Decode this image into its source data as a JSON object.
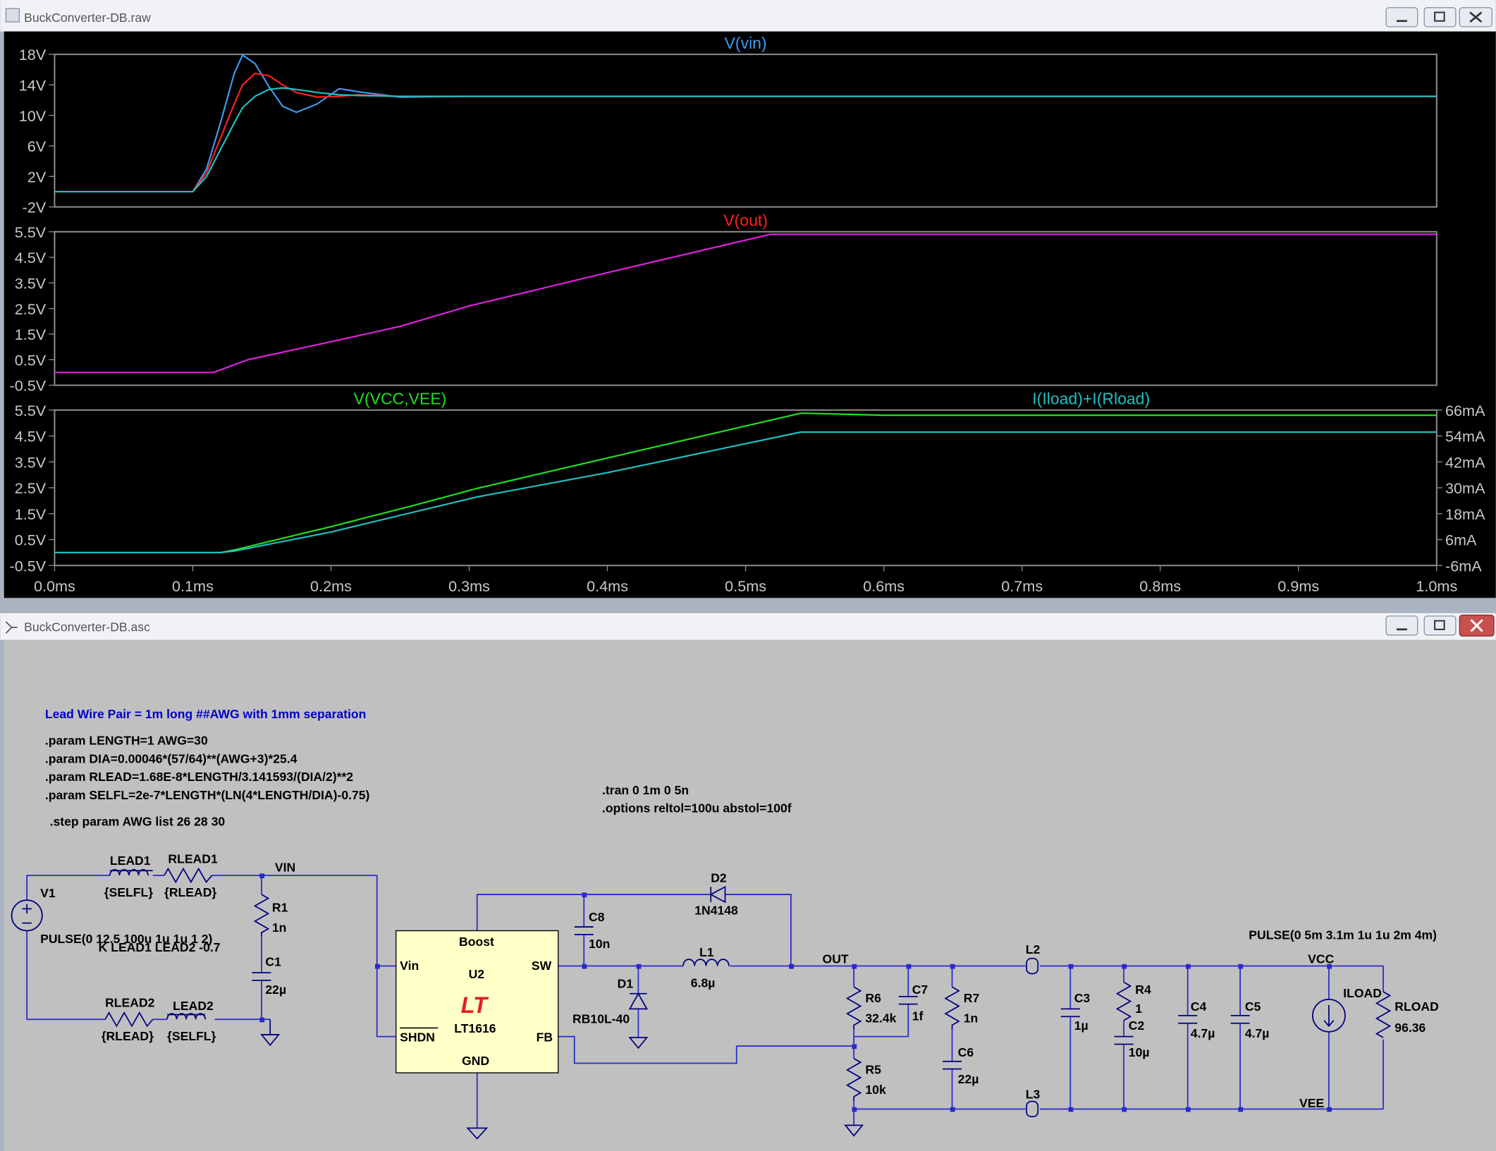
{
  "waveform_window": {
    "title": "BuckConverter-DB.raw"
  },
  "chart_data": [
    {
      "type": "line",
      "title": "V(vin)",
      "title_color": "#3c9cf0",
      "xlim": [
        0,
        1.0
      ],
      "ylim": [
        -2,
        18
      ],
      "yticks": [
        {
          "value": -2,
          "label": "-2V"
        },
        {
          "value": 2,
          "label": "2V"
        },
        {
          "value": 6,
          "label": "6V"
        },
        {
          "value": 10,
          "label": "10V"
        },
        {
          "value": 14,
          "label": "14V"
        },
        {
          "value": 18,
          "label": "18V"
        }
      ],
      "x": [
        0,
        0.1,
        0.11,
        0.12,
        0.13,
        0.136,
        0.145,
        0.155,
        0.165,
        0.175,
        0.19,
        0.206,
        0.22,
        0.25,
        0.3,
        1.0
      ],
      "series": [
        {
          "color": "#3c9cf0",
          "values": [
            0,
            0,
            3,
            9,
            15.5,
            17.9,
            16.8,
            13.8,
            11.2,
            10.4,
            11.5,
            13.5,
            13.1,
            12.4,
            12.5,
            12.5
          ]
        },
        {
          "color": "#ff2020",
          "values": [
            0,
            0,
            2.5,
            7,
            11.5,
            14,
            15.5,
            15.2,
            14,
            13,
            12.4,
            12.5,
            12.7,
            12.5,
            12.5,
            12.5
          ]
        },
        {
          "color": "#20c0c0",
          "values": [
            0,
            0,
            2,
            5.5,
            9,
            11,
            12.5,
            13.4,
            13.6,
            13.4,
            13,
            12.7,
            12.6,
            12.5,
            12.5,
            12.5
          ]
        }
      ]
    },
    {
      "type": "line",
      "title": "V(out)",
      "title_color": "#ff2020",
      "xlim": [
        0,
        1.0
      ],
      "ylim": [
        -0.5,
        5.5
      ],
      "yticks": [
        {
          "value": -0.5,
          "label": "-0.5V"
        },
        {
          "value": 0.5,
          "label": "0.5V"
        },
        {
          "value": 1.5,
          "label": "1.5V"
        },
        {
          "value": 2.5,
          "label": "2.5V"
        },
        {
          "value": 3.5,
          "label": "3.5V"
        },
        {
          "value": 4.5,
          "label": "4.5V"
        },
        {
          "value": 5.5,
          "label": "5.5V"
        }
      ],
      "x": [
        0,
        0.115,
        0.13,
        0.14,
        0.2,
        0.25,
        0.3,
        0.4,
        0.518,
        1.0
      ],
      "series": [
        {
          "color": "#e020e0",
          "values": [
            0,
            0,
            0.3,
            0.5,
            1.2,
            1.8,
            2.6,
            3.9,
            5.4,
            5.4
          ]
        }
      ]
    },
    {
      "type": "line",
      "xlim": [
        0,
        1.0
      ],
      "ylim": [
        -0.5,
        5.5
      ],
      "y2lim": [
        -6,
        66
      ],
      "yticks": [
        {
          "value": -0.5,
          "label": "-0.5V"
        },
        {
          "value": 0.5,
          "label": "0.5V"
        },
        {
          "value": 1.5,
          "label": "1.5V"
        },
        {
          "value": 2.5,
          "label": "2.5V"
        },
        {
          "value": 3.5,
          "label": "3.5V"
        },
        {
          "value": 4.5,
          "label": "4.5V"
        },
        {
          "value": 5.5,
          "label": "5.5V"
        }
      ],
      "y2ticks": [
        {
          "value": -6,
          "label": "-6mA"
        },
        {
          "value": 6,
          "label": "6mA"
        },
        {
          "value": 18,
          "label": "18mA"
        },
        {
          "value": 30,
          "label": "30mA"
        },
        {
          "value": 42,
          "label": "42mA"
        },
        {
          "value": 54,
          "label": "54mA"
        },
        {
          "value": 66,
          "label": "66mA"
        }
      ],
      "xticks": [
        {
          "value": 0,
          "label": "0.0ms"
        },
        {
          "value": 0.1,
          "label": "0.1ms"
        },
        {
          "value": 0.2,
          "label": "0.2ms"
        },
        {
          "value": 0.3,
          "label": "0.3ms"
        },
        {
          "value": 0.4,
          "label": "0.4ms"
        },
        {
          "value": 0.5,
          "label": "0.5ms"
        },
        {
          "value": 0.6,
          "label": "0.6ms"
        },
        {
          "value": 0.7,
          "label": "0.7ms"
        },
        {
          "value": 0.8,
          "label": "0.8ms"
        },
        {
          "value": 0.9,
          "label": "0.9ms"
        },
        {
          "value": 1.0,
          "label": "1.0ms"
        }
      ],
      "x": [
        0,
        0.12,
        0.13,
        0.2,
        0.257,
        0.306,
        0.4,
        0.54,
        0.6,
        1.0
      ],
      "series": [
        {
          "name": "V(VCC,VEE)",
          "color": "#20e020",
          "values": [
            0,
            0,
            0.1,
            1.0,
            1.78,
            2.48,
            3.65,
            5.38,
            5.3,
            5.3
          ]
        },
        {
          "name": "I(Iload)+I(Rload)",
          "color": "#20c0c0",
          "axis": "y2",
          "values": [
            0,
            0,
            0.7,
            9.5,
            18.3,
            25.8,
            37,
            55.8,
            55.8,
            55.8
          ]
        }
      ]
    }
  ],
  "schematic_window": {
    "title": "BuckConverter-DB.asc",
    "note": "Lead Wire Pair = 1m long ##AWG with 1mm separation",
    "directives": [
      ".param LENGTH=1 AWG=30",
      ".param DIA=0.00046*(57/64)**(AWG+3)*25.4",
      ".param RLEAD=1.68E-8*LENGTH/3.141593/(DIA/2)**2",
      ".param SELFL=2e-7*LENGTH*(LN(4*LENGTH/DIA)-0.75)",
      ".step param AWG list 26 28 30",
      ".tran 0 1m 0 5n",
      ".options reltol=100u abstol=100f"
    ],
    "labels": [
      "LEAD1",
      "RLEAD1",
      "{SELFL}",
      "{RLEAD}",
      "VIN",
      "V1",
      "R1",
      "1n",
      "C1",
      "22µ",
      "PULSE(0 12.5 100u 1u 1u 1 2)",
      "K LEAD1 LEAD2 -0.7",
      "RLEAD2",
      "LEAD2",
      "{RLEAD}",
      "{SELFL}",
      "Boost",
      "U2",
      "Vin",
      "SW",
      "SHDN",
      "LT1616",
      "FB",
      "GND",
      "C8",
      "10n",
      "D2",
      "1N4148",
      "L1",
      "6.8µ",
      "D1",
      "RB10L-40",
      "OUT",
      "R6",
      "32.4k",
      "C7",
      "1f",
      "R7",
      "1n",
      "C6",
      "22µ",
      "R5",
      "10k",
      "L2",
      "L3",
      "C3",
      "1µ",
      "R4",
      "1",
      "C2",
      "10µ",
      "C4",
      "4.7µ",
      "C5",
      "4.7µ",
      "PULSE(0 5m 3.1m 1u 1u 2m 4m)",
      "VCC",
      "ILOAD",
      "RLOAD",
      "96.36",
      "VEE"
    ]
  }
}
